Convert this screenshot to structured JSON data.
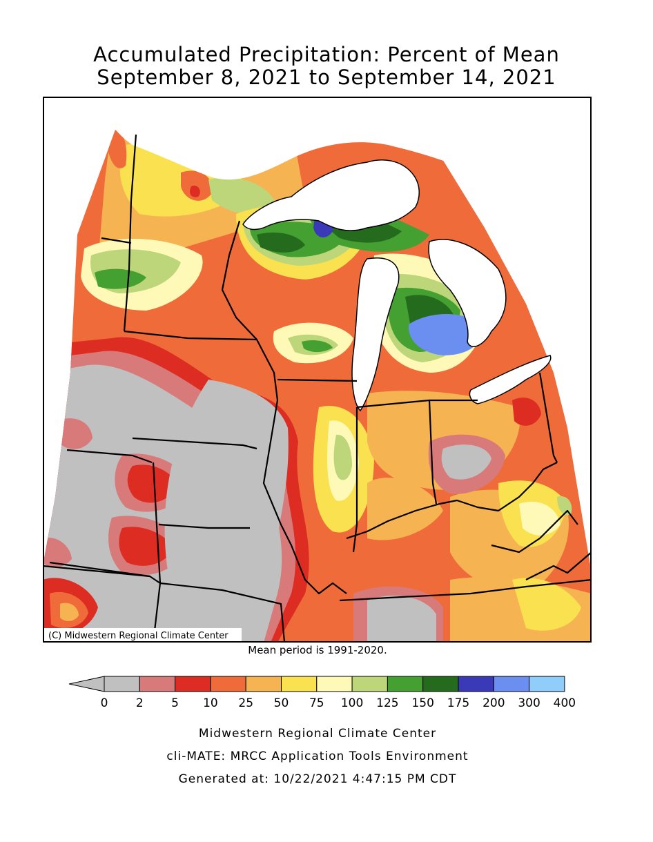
{
  "title": {
    "line1": "Accumulated Precipitation: Percent of Mean",
    "line2": "September 8, 2021 to September 14, 2021"
  },
  "map": {
    "copyright": "(C) Midwestern Regional Climate Center",
    "palette": {
      "water": "#ffffff",
      "gray": "#c0c0c0",
      "pink": "#d97a7a",
      "red": "#dd2c22",
      "orange_red": "#ef6b3a",
      "light_orange": "#f6b352",
      "yellow": "#f9e150",
      "pale_yellow": "#fff9b8",
      "light_green": "#bdd67a",
      "green": "#45a032",
      "dark_green": "#256b1e",
      "dark_blue": "#3a3ab8",
      "blue": "#6a8ff0"
    }
  },
  "mean_period": "Mean period is 1991-2020.",
  "legend": {
    "colors": [
      "#c0c0c0",
      "#d97a7a",
      "#dd2c22",
      "#ef6b3a",
      "#f6b352",
      "#f9e150",
      "#fff9b8",
      "#bdd67a",
      "#45a032",
      "#256b1e",
      "#3a3ab8",
      "#6a8ff0",
      "#8fcdfa"
    ],
    "labels": [
      "0",
      "2",
      "5",
      "10",
      "25",
      "50",
      "75",
      "100",
      "125",
      "150",
      "175",
      "200",
      "300",
      "400"
    ]
  },
  "footer": {
    "line1": "Midwestern Regional Climate Center",
    "line2": "cli-MATE: MRCC Application Tools Environment",
    "line3": "Generated at: 10/22/2021 4:47:15 PM CDT"
  }
}
